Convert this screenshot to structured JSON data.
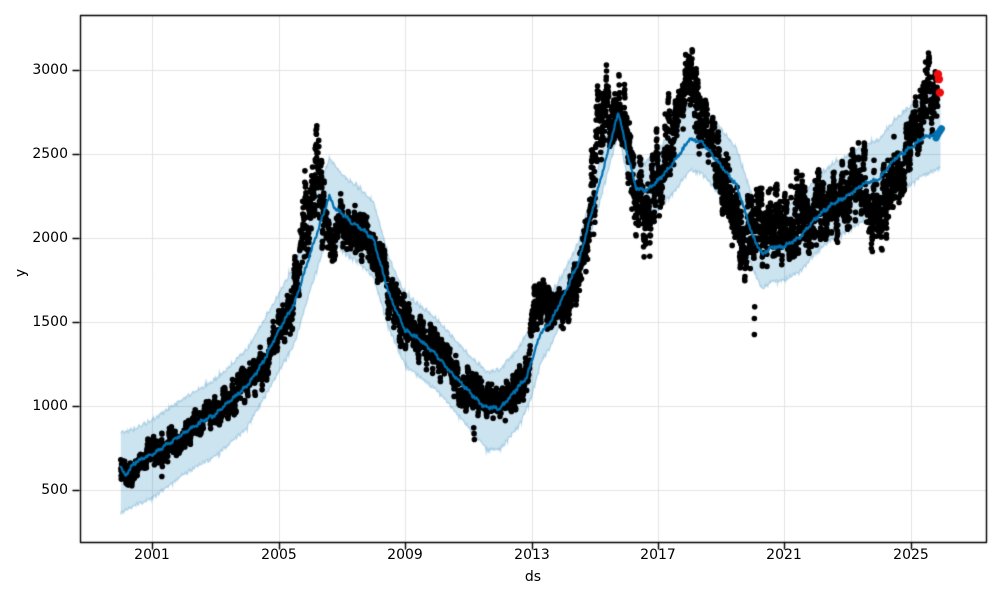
{
  "figure": {
    "kind": "prophet-forecast-plot",
    "background": "#ffffff"
  },
  "chart_data": {
    "type": "scatter",
    "title": "",
    "xlabel": "ds",
    "ylabel": "y",
    "xlim": [
      1998.71,
      2027.38
    ],
    "ylim": [
      190,
      3327
    ],
    "grid": true,
    "legend": "none",
    "xticks": {
      "values": [
        2001,
        2005,
        2009,
        2013,
        2017,
        2021,
        2025
      ],
      "labels": [
        "2001",
        "2005",
        "2009",
        "2013",
        "2017",
        "2021",
        "2025"
      ]
    },
    "yticks": {
      "values": [
        3000,
        2500,
        2000,
        1500,
        1000,
        500
      ],
      "labels": [
        "3000",
        "2500",
        "2000",
        "1500",
        "1000",
        "500"
      ]
    },
    "colors": {
      "scatter": "#000000",
      "forecast_line": "#0072B2",
      "band_fill": "rgba(0,114,178,0.2)",
      "band_edge": "rgba(0,114,178,0.22)",
      "anomaly": "#f00c0c",
      "grid": "#e3e3e3",
      "spine": "#000000",
      "text": "#000000",
      "background": "#ffffff"
    },
    "series": [
      {
        "name": "forecast_yhat",
        "type": "line",
        "points": [
          [
            2000.0,
            630
          ],
          [
            2000.15,
            585
          ],
          [
            2000.4,
            655
          ],
          [
            2000.7,
            690
          ],
          [
            2001.0,
            710
          ],
          [
            2001.5,
            775
          ],
          [
            2002.0,
            840
          ],
          [
            2002.5,
            900
          ],
          [
            2003.0,
            950
          ],
          [
            2003.5,
            1040
          ],
          [
            2004.0,
            1120
          ],
          [
            2004.5,
            1260
          ],
          [
            2005.0,
            1450
          ],
          [
            2005.5,
            1610
          ],
          [
            2006.0,
            1910
          ],
          [
            2006.3,
            2080
          ],
          [
            2006.6,
            2250
          ],
          [
            2006.8,
            2170
          ],
          [
            2007.0,
            2150
          ],
          [
            2007.3,
            2090
          ],
          [
            2007.6,
            2060
          ],
          [
            2008.0,
            1990
          ],
          [
            2008.5,
            1660
          ],
          [
            2009.0,
            1450
          ],
          [
            2009.5,
            1390
          ],
          [
            2010.0,
            1300
          ],
          [
            2010.5,
            1190
          ],
          [
            2011.0,
            1090
          ],
          [
            2011.5,
            995
          ],
          [
            2012.0,
            985
          ],
          [
            2012.3,
            1050
          ],
          [
            2012.6,
            1120
          ],
          [
            2012.85,
            1170
          ],
          [
            2013.0,
            1270
          ],
          [
            2013.3,
            1440
          ],
          [
            2013.6,
            1500
          ],
          [
            2014.0,
            1650
          ],
          [
            2014.5,
            1860
          ],
          [
            2015.0,
            2220
          ],
          [
            2015.4,
            2500
          ],
          [
            2015.75,
            2750
          ],
          [
            2016.0,
            2530
          ],
          [
            2016.3,
            2300
          ],
          [
            2016.6,
            2280
          ],
          [
            2017.0,
            2340
          ],
          [
            2017.5,
            2450
          ],
          [
            2018.0,
            2590
          ],
          [
            2018.4,
            2570
          ],
          [
            2019.0,
            2430
          ],
          [
            2019.5,
            2310
          ],
          [
            2020.0,
            2010
          ],
          [
            2020.3,
            1900
          ],
          [
            2020.6,
            1945
          ],
          [
            2021.0,
            1950
          ],
          [
            2021.5,
            2005
          ],
          [
            2022.0,
            2120
          ],
          [
            2022.5,
            2200
          ],
          [
            2023.0,
            2250
          ],
          [
            2023.5,
            2320
          ],
          [
            2024.0,
            2350
          ],
          [
            2024.5,
            2470
          ],
          [
            2025.0,
            2540
          ],
          [
            2025.4,
            2595
          ],
          [
            2025.82,
            2620
          ],
          [
            2025.95,
            2650
          ]
        ]
      },
      {
        "name": "forecast_tail_thick",
        "type": "line",
        "points": [
          [
            2025.8,
            2595
          ],
          [
            2025.88,
            2625
          ],
          [
            2025.97,
            2650
          ]
        ]
      },
      {
        "name": "uncertainty_band",
        "type": "band",
        "points": [
          [
            2000.0,
            370,
            830
          ],
          [
            2000.5,
            420,
            860
          ],
          [
            2001.0,
            460,
            910
          ],
          [
            2002.0,
            600,
            1040
          ],
          [
            2003.0,
            710,
            1150
          ],
          [
            2004.0,
            880,
            1330
          ],
          [
            2005.0,
            1210,
            1660
          ],
          [
            2005.5,
            1380,
            1830
          ],
          [
            2006.0,
            1700,
            2120
          ],
          [
            2006.6,
            2040,
            2470
          ],
          [
            2007.0,
            1930,
            2370
          ],
          [
            2007.6,
            1850,
            2280
          ],
          [
            2008.0,
            1770,
            2210
          ],
          [
            2008.5,
            1460,
            1870
          ],
          [
            2009.0,
            1250,
            1660
          ],
          [
            2010.0,
            1100,
            1510
          ],
          [
            2011.0,
            880,
            1300
          ],
          [
            2011.6,
            745,
            1195
          ],
          [
            2012.0,
            750,
            1210
          ],
          [
            2012.6,
            890,
            1340
          ],
          [
            2013.0,
            1060,
            1480
          ],
          [
            2013.3,
            1270,
            1610
          ],
          [
            2013.6,
            1360,
            1650
          ],
          [
            2014.0,
            1530,
            1780
          ],
          [
            2014.5,
            1750,
            1975
          ],
          [
            2015.0,
            2110,
            2335
          ],
          [
            2015.4,
            2390,
            2615
          ],
          [
            2015.75,
            2630,
            2865
          ],
          [
            2016.0,
            2400,
            2670
          ],
          [
            2016.3,
            2160,
            2450
          ],
          [
            2016.6,
            2130,
            2440
          ],
          [
            2017.0,
            2180,
            2520
          ],
          [
            2017.5,
            2280,
            2640
          ],
          [
            2018.0,
            2410,
            2790
          ],
          [
            2018.4,
            2390,
            2770
          ],
          [
            2019.0,
            2250,
            2640
          ],
          [
            2019.5,
            2120,
            2520
          ],
          [
            2020.0,
            1820,
            2230
          ],
          [
            2020.3,
            1700,
            2130
          ],
          [
            2020.6,
            1750,
            2170
          ],
          [
            2021.0,
            1755,
            2175
          ],
          [
            2021.5,
            1810,
            2230
          ],
          [
            2022.0,
            1920,
            2345
          ],
          [
            2022.5,
            2000,
            2430
          ],
          [
            2023.0,
            2050,
            2480
          ],
          [
            2023.5,
            2110,
            2545
          ],
          [
            2024.0,
            2140,
            2580
          ],
          [
            2024.5,
            2255,
            2700
          ],
          [
            2025.0,
            2325,
            2775
          ],
          [
            2025.4,
            2380,
            2830
          ],
          [
            2025.95,
            2425,
            2855
          ]
        ]
      },
      {
        "name": "history_scatter",
        "type": "scatter",
        "t_start": 2000.0,
        "t_end": 2025.85,
        "envelope": [
          [
            2000.0,
            560,
            760
          ],
          [
            2000.3,
            520,
            700
          ],
          [
            2000.6,
            600,
            770
          ],
          [
            2001.0,
            620,
            820
          ],
          [
            2001.5,
            650,
            860
          ],
          [
            2002.0,
            750,
            960
          ],
          [
            2002.5,
            800,
            1000
          ],
          [
            2003.0,
            840,
            1060
          ],
          [
            2003.5,
            930,
            1150
          ],
          [
            2004.0,
            1020,
            1260
          ],
          [
            2004.5,
            1100,
            1380
          ],
          [
            2005.0,
            1330,
            1570
          ],
          [
            2005.4,
            1430,
            1700
          ],
          [
            2005.7,
            1700,
            2250
          ],
          [
            2006.0,
            1950,
            2680
          ],
          [
            2006.2,
            2000,
            2680
          ],
          [
            2006.45,
            1900,
            2320
          ],
          [
            2006.7,
            1850,
            2200
          ],
          [
            2007.0,
            1950,
            2280
          ],
          [
            2007.4,
            1900,
            2230
          ],
          [
            2007.8,
            1820,
            2130
          ],
          [
            2008.2,
            1650,
            2000
          ],
          [
            2008.6,
            1450,
            1800
          ],
          [
            2009.0,
            1300,
            1650
          ],
          [
            2009.5,
            1250,
            1550
          ],
          [
            2010.0,
            1150,
            1450
          ],
          [
            2010.5,
            1050,
            1320
          ],
          [
            2011.0,
            950,
            1250
          ],
          [
            2011.5,
            900,
            1150
          ],
          [
            2012.0,
            880,
            1120
          ],
          [
            2012.4,
            950,
            1180
          ],
          [
            2012.85,
            1060,
            1300
          ],
          [
            2013.05,
            1430,
            1800
          ],
          [
            2013.35,
            1450,
            1800
          ],
          [
            2013.7,
            1400,
            1700
          ],
          [
            2014.0,
            1450,
            1710
          ],
          [
            2014.4,
            1550,
            1900
          ],
          [
            2014.8,
            1800,
            2300
          ],
          [
            2015.1,
            2200,
            3000
          ],
          [
            2015.35,
            2550,
            3090
          ],
          [
            2015.6,
            2540,
            3000
          ],
          [
            2015.9,
            2540,
            2950
          ],
          [
            2016.1,
            2250,
            2800
          ],
          [
            2016.4,
            1900,
            2500
          ],
          [
            2016.7,
            1850,
            2350
          ],
          [
            2017.0,
            2100,
            2700
          ],
          [
            2017.3,
            2300,
            2900
          ],
          [
            2017.6,
            2500,
            2900
          ],
          [
            2017.9,
            2700,
            3180
          ],
          [
            2018.1,
            2640,
            3150
          ],
          [
            2018.3,
            2450,
            2900
          ],
          [
            2018.6,
            2350,
            2800
          ],
          [
            2019.0,
            2150,
            2600
          ],
          [
            2019.4,
            1900,
            2400
          ],
          [
            2019.8,
            1700,
            2250
          ],
          [
            2020.2,
            1750,
            2300
          ],
          [
            2020.6,
            1800,
            2300
          ],
          [
            2021.0,
            1850,
            2350
          ],
          [
            2021.4,
            1900,
            2400
          ],
          [
            2021.8,
            1900,
            2350
          ],
          [
            2022.2,
            2000,
            2450
          ],
          [
            2022.6,
            1950,
            2400
          ],
          [
            2023.0,
            2050,
            2500
          ],
          [
            2023.4,
            2100,
            2600
          ],
          [
            2023.8,
            1900,
            2500
          ],
          [
            2024.0,
            1830,
            2400
          ],
          [
            2024.2,
            1950,
            2450
          ],
          [
            2024.45,
            2100,
            2600
          ],
          [
            2024.7,
            2250,
            2650
          ],
          [
            2025.0,
            2350,
            2700
          ],
          [
            2025.3,
            2550,
            3000
          ],
          [
            2025.55,
            2600,
            3110
          ],
          [
            2025.7,
            2600,
            3000
          ],
          [
            2025.85,
            2620,
            2980
          ]
        ],
        "outliers": [
          [
            2011.17,
            870
          ],
          [
            2011.18,
            835
          ],
          [
            2011.19,
            800
          ],
          [
            2020.05,
            1425
          ],
          [
            2020.05,
            1520
          ],
          [
            2020.06,
            1590
          ],
          [
            2000.35,
            525
          ],
          [
            2001.3,
            580
          ]
        ]
      },
      {
        "name": "anomalies",
        "type": "scatter",
        "points": [
          [
            2025.86,
            2975
          ],
          [
            2025.89,
            2945
          ],
          [
            2025.92,
            2865
          ]
        ]
      }
    ]
  }
}
